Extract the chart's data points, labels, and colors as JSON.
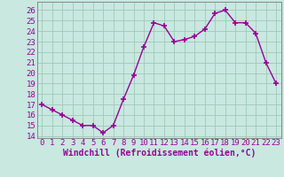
{
  "x": [
    0,
    1,
    2,
    3,
    4,
    5,
    6,
    7,
    8,
    9,
    10,
    11,
    12,
    13,
    14,
    15,
    16,
    17,
    18,
    19,
    20,
    21,
    22,
    23
  ],
  "y": [
    17.0,
    16.5,
    16.0,
    15.5,
    15.0,
    15.0,
    14.3,
    15.0,
    17.5,
    19.8,
    22.5,
    24.8,
    24.5,
    23.0,
    23.2,
    23.5,
    24.2,
    25.7,
    26.0,
    24.8,
    24.8,
    23.8,
    21.0,
    19.0
  ],
  "line_color": "#990099",
  "marker": "+",
  "marker_size": 4,
  "marker_lw": 1.2,
  "bg_color": "#c8e8e0",
  "grid_color": "#a0c8b8",
  "xlabel": "Windchill (Refroidissement éolien,°C)",
  "xlabel_fontsize": 7,
  "ylabel_ticks": [
    14,
    15,
    16,
    17,
    18,
    19,
    20,
    21,
    22,
    23,
    24,
    25,
    26
  ],
  "xlim": [
    -0.5,
    23.5
  ],
  "ylim": [
    13.8,
    26.8
  ],
  "tick_fontsize": 6.5,
  "tick_color": "#990099",
  "linewidth": 1.0
}
